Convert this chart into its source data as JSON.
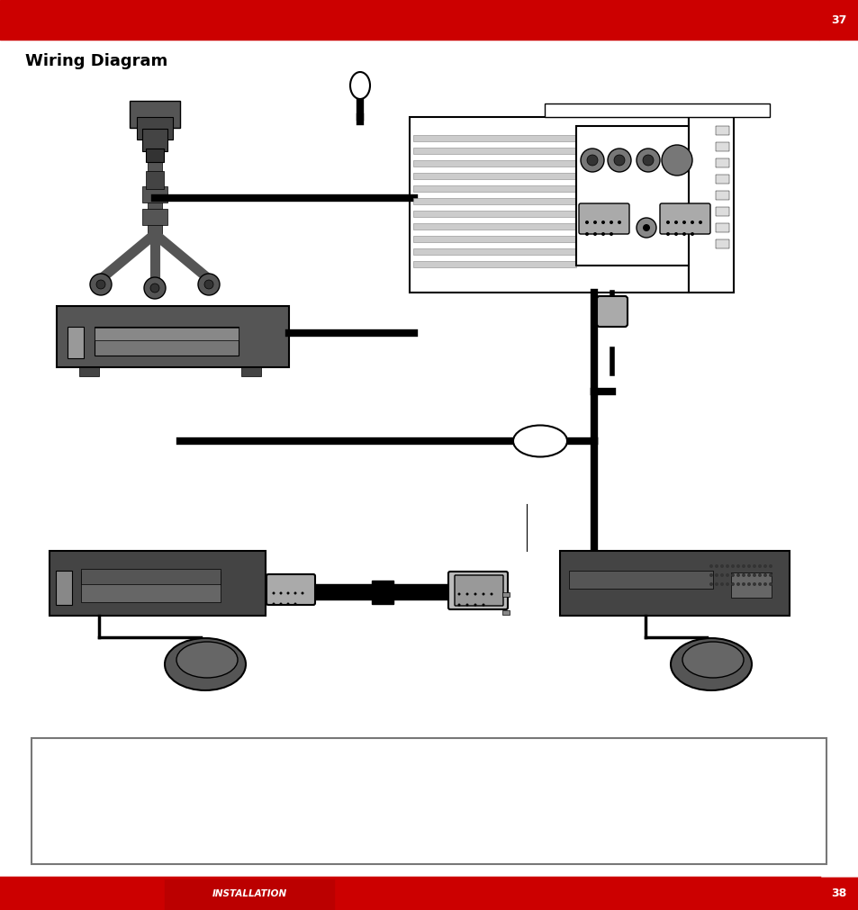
{
  "bg_color": "#ffffff",
  "title": "Wiring Diagram",
  "top_bar_color": "#cc0000",
  "top_page_number": "37",
  "bottom_label": "INSTALLATION",
  "bottom_page_number": "38"
}
